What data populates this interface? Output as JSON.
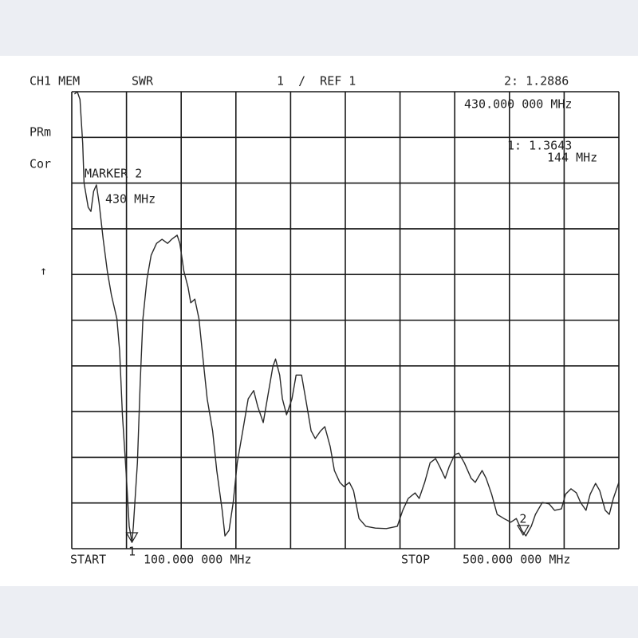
{
  "chart_data": {
    "type": "line",
    "texts": [
      "CH1 MEM",
      "SWR",
      "1  /  REF 1",
      "2: 1.2886",
      "430.000 000 MHz",
      "PRm",
      "Cor",
      "MARKER 2",
      "430 MHz",
      "1: 1.3643",
      "144 MHz",
      "↑",
      "START",
      "100.000 000 MHz",
      "STOP",
      "500.000 000 MHz"
    ],
    "xlim": [
      100,
      500
    ],
    "ylim": [
      0,
      10
    ],
    "grid": true,
    "color": "#2a2a2a",
    "x": [
      102,
      104,
      106,
      108,
      109,
      112,
      114,
      116,
      118,
      120,
      123,
      126,
      129,
      133,
      135,
      137,
      140,
      142,
      144,
      145,
      148,
      150,
      152,
      155,
      158,
      162,
      166,
      170,
      173,
      177,
      179,
      182,
      185,
      187,
      190,
      193,
      196,
      199,
      203,
      206,
      210,
      212,
      215,
      218,
      221,
      225,
      229,
      233,
      236,
      240,
      243,
      247,
      249,
      252,
      254,
      257,
      261,
      264,
      268,
      271,
      275,
      278,
      282,
      285,
      289,
      292,
      296,
      299,
      303,
      306,
      310,
      315,
      322,
      330,
      338,
      342,
      346,
      351,
      354,
      358,
      362,
      366,
      369,
      373,
      376,
      380,
      383,
      387,
      392,
      395,
      400,
      403,
      407,
      411,
      416,
      421,
      425,
      429,
      432,
      436,
      439,
      444,
      449,
      453,
      458,
      461,
      465,
      469,
      472,
      476,
      479,
      483,
      486,
      490,
      493,
      496,
      500
    ],
    "values": [
      9.95,
      10.0,
      9.83,
      8.87,
      8.0,
      7.47,
      7.38,
      7.82,
      7.96,
      7.56,
      6.77,
      6.07,
      5.55,
      5.03,
      4.33,
      2.93,
      1.54,
      0.49,
      0.14,
      0.49,
      1.88,
      3.63,
      5.03,
      5.9,
      6.42,
      6.68,
      6.77,
      6.68,
      6.77,
      6.86,
      6.68,
      6.07,
      5.72,
      5.38,
      5.46,
      5.03,
      4.15,
      3.28,
      2.58,
      1.71,
      0.84,
      0.28,
      0.4,
      1.01,
      1.88,
      2.58,
      3.28,
      3.46,
      3.11,
      2.76,
      3.28,
      3.98,
      4.15,
      3.8,
      3.28,
      2.93,
      3.28,
      3.8,
      3.8,
      3.28,
      2.58,
      2.41,
      2.58,
      2.67,
      2.23,
      1.71,
      1.45,
      1.36,
      1.45,
      1.27,
      0.66,
      0.49,
      0.45,
      0.44,
      0.49,
      0.84,
      1.1,
      1.22,
      1.1,
      1.45,
      1.88,
      1.97,
      1.8,
      1.54,
      1.8,
      2.06,
      2.09,
      1.88,
      1.54,
      1.45,
      1.71,
      1.54,
      1.19,
      0.75,
      0.66,
      0.58,
      0.66,
      0.4,
      0.28,
      0.49,
      0.75,
      1.01,
      0.98,
      0.84,
      0.87,
      1.19,
      1.31,
      1.22,
      1.01,
      0.84,
      1.19,
      1.43,
      1.27,
      0.84,
      0.75,
      1.1,
      1.45
    ],
    "markers": [
      {
        "label": "1",
        "x": 144,
        "value": 0.14
      },
      {
        "label": "2",
        "x": 430,
        "value": 0.3
      }
    ]
  }
}
